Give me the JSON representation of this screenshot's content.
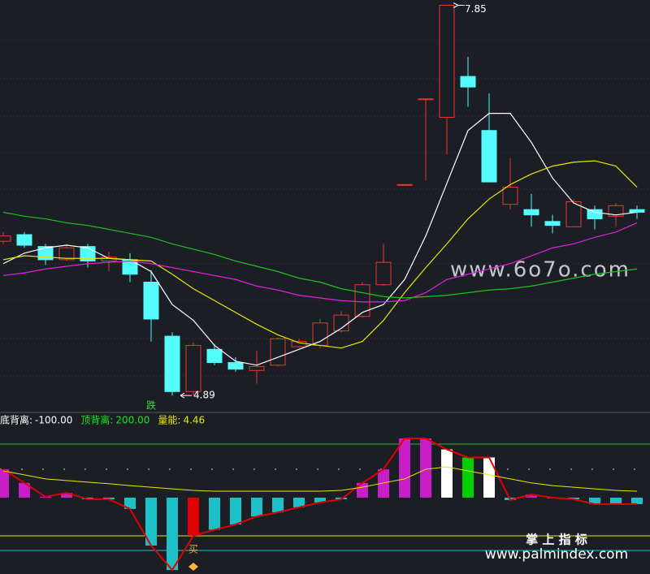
{
  "chart_data": [
    {
      "type": "candlestick",
      "categories": [
        null,
        null,
        null,
        null,
        null,
        null,
        null,
        null,
        null,
        null,
        null,
        null,
        null,
        null,
        null,
        null,
        null,
        null,
        null,
        null,
        null,
        null,
        null,
        null,
        null,
        null,
        null,
        null,
        null,
        null,
        null
      ],
      "open": [
        6.06,
        6.11,
        6.02,
        5.92,
        6.02,
        5.91,
        5.92,
        5.75,
        5.34,
        4.92,
        5.24,
        5.14,
        5.08,
        5.12,
        5.26,
        5.27,
        5.38,
        5.49,
        5.73,
        6.49,
        7.14,
        7.0,
        7.31,
        6.9,
        6.34,
        6.3,
        6.21,
        6.17,
        6.3,
        6.25,
        6.3
      ],
      "high": [
        6.13,
        6.13,
        6.04,
        6.04,
        6.04,
        5.98,
        5.97,
        5.84,
        5.37,
        5.29,
        5.28,
        5.18,
        5.23,
        5.33,
        5.32,
        5.47,
        5.53,
        5.75,
        6.04,
        6.49,
        7.14,
        7.85,
        7.46,
        7.18,
        6.69,
        6.42,
        6.26,
        6.38,
        6.33,
        6.35,
        6.33
      ],
      "low": [
        6.04,
        6.01,
        5.88,
        5.91,
        5.86,
        5.83,
        5.75,
        5.3,
        4.89,
        4.89,
        5.12,
        5.07,
        4.98,
        5.11,
        5.25,
        5.25,
        5.37,
        5.48,
        5.72,
        6.49,
        6.52,
        6.72,
        7.08,
        6.51,
        6.3,
        6.17,
        6.12,
        6.17,
        6.15,
        6.17,
        6.23
      ],
      "close": [
        6.1,
        6.03,
        5.92,
        6.01,
        5.91,
        5.94,
        5.81,
        5.47,
        4.92,
        5.27,
        5.14,
        5.09,
        5.11,
        5.32,
        5.3,
        5.44,
        5.5,
        5.73,
        5.9,
        6.49,
        7.14,
        7.85,
        7.23,
        6.51,
        6.47,
        6.26,
        6.18,
        6.36,
        6.23,
        6.33,
        6.28
      ],
      "up_color": "#e8392f",
      "down_color": "#54fcfc",
      "series": [
        {
          "color": "#ffffff",
          "values": [
            5.89,
            5.97,
            6.01,
            6.03,
            6.01,
            5.93,
            5.92,
            5.83,
            5.58,
            5.46,
            5.27,
            5.15,
            5.12,
            5.18,
            5.24,
            5.3,
            5.4,
            5.52,
            5.58,
            5.77,
            6.1,
            6.5,
            6.9,
            7.03,
            7.03,
            6.81,
            6.54,
            6.35,
            6.28,
            6.26,
            6.28
          ]
        },
        {
          "color": "#e8e800",
          "values": [
            5.92,
            5.95,
            5.94,
            5.93,
            5.93,
            5.93,
            5.92,
            5.91,
            5.81,
            5.7,
            5.61,
            5.52,
            5.43,
            5.35,
            5.29,
            5.27,
            5.25,
            5.3,
            5.46,
            5.67,
            5.86,
            6.04,
            6.23,
            6.38,
            6.49,
            6.57,
            6.63,
            6.66,
            6.67,
            6.63,
            6.47
          ]
        },
        {
          "color": "#e020e0",
          "values": [
            5.8,
            5.82,
            5.85,
            5.87,
            5.89,
            5.9,
            5.91,
            5.89,
            5.86,
            5.83,
            5.8,
            5.77,
            5.72,
            5.69,
            5.65,
            5.63,
            5.61,
            5.6,
            5.6,
            5.61,
            5.67,
            5.77,
            5.81,
            5.85,
            5.89,
            5.95,
            6.01,
            6.04,
            6.09,
            6.13,
            6.2
          ]
        },
        {
          "color": "#20c020",
          "values": [
            6.28,
            6.25,
            6.23,
            6.2,
            6.18,
            6.15,
            6.12,
            6.09,
            6.04,
            6.0,
            5.96,
            5.91,
            5.87,
            5.83,
            5.78,
            5.75,
            5.7,
            5.67,
            5.64,
            5.63,
            5.64,
            5.65,
            5.67,
            5.69,
            5.7,
            5.72,
            5.75,
            5.78,
            5.81,
            5.83,
            5.85
          ]
        }
      ],
      "ylim": [
        4.78,
        7.89
      ],
      "high_label": 7.85,
      "low_label": 4.89,
      "annotations": [
        "跌"
      ],
      "watermark": "www.6o7o.com"
    },
    {
      "type": "bar",
      "categories": [
        null,
        null,
        null,
        null,
        null,
        null,
        null,
        null,
        null,
        null,
        null,
        null,
        null,
        null,
        null,
        null,
        null,
        null,
        null,
        null,
        null,
        null,
        null,
        null,
        null,
        null,
        null,
        null,
        null,
        null,
        null
      ],
      "values": [
        106,
        55,
        3,
        18,
        -6,
        -6,
        -42,
        -179,
        -270,
        -142,
        -120,
        -100,
        -70,
        -55,
        -36,
        -18,
        -6,
        55,
        106,
        221,
        221,
        180,
        150,
        150,
        -9,
        12,
        0,
        -6,
        -24,
        -24,
        -24
      ],
      "colors": [
        "#c81ec8",
        "#c81ec8",
        "#c81ec8",
        "#c81ec8",
        "#1ec0c8",
        "#1ec0c8",
        "#1ec0c8",
        "#1ec0c8",
        "#1ec0c8",
        "#e00000",
        "#1ec0c8",
        "#1ec0c8",
        "#1ec0c8",
        "#1ec0c8",
        "#1ec0c8",
        "#1ec0c8",
        "#1ec0c8",
        "#c81ec8",
        "#c81ec8",
        "#c81ec8",
        "#c81ec8",
        "#ffffff",
        "#00d000",
        "#ffffff",
        "#1ec0c8",
        "#c81ec8",
        "#c81ec8",
        "#1ec0c8",
        "#1ec0c8",
        "#1ec0c8",
        "#1ec0c8"
      ],
      "series": [
        {
          "color": "#e8e800",
          "values": [
            100,
            85,
            70,
            64,
            58,
            52,
            45,
            39,
            33,
            27,
            24,
            24,
            24,
            24,
            24,
            24,
            27,
            39,
            55,
            70,
            106,
            115,
            100,
            85,
            70,
            55,
            45,
            39,
            33,
            27,
            24
          ]
        }
      ],
      "ylim": [
        -285,
        312
      ],
      "indicators": [
        {
          "name": "底背离:",
          "value": -100,
          "value_label": "-100.00",
          "color": "#ffffff"
        },
        {
          "name": "顶背离:",
          "value": 200,
          "value_label": "200.00",
          "color": "#20e020"
        },
        {
          "name": "量能:",
          "value": 4.46,
          "color": "#e8e800"
        }
      ],
      "annotations": [
        "买"
      ],
      "brand": "掌 上 指 标",
      "brand_url": "www.palmindex.com"
    }
  ]
}
